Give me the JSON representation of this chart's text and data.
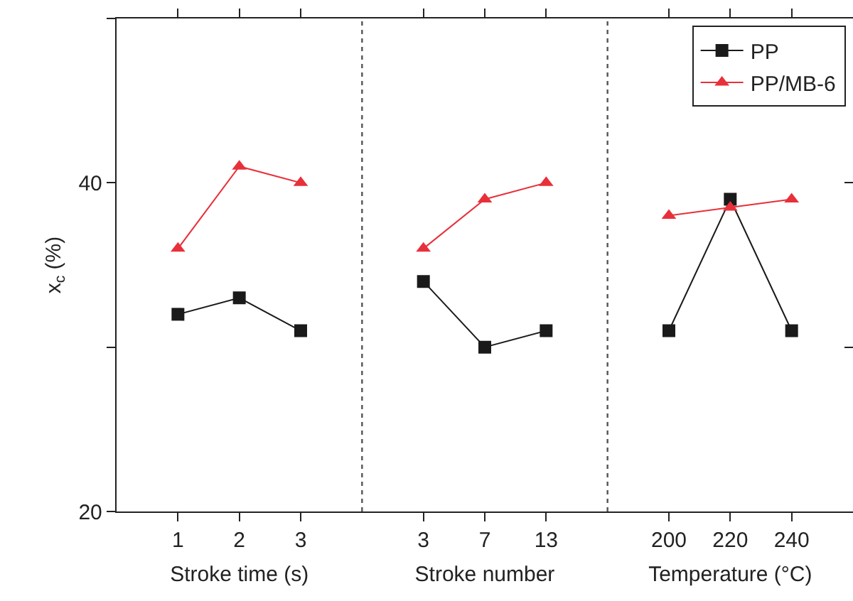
{
  "chart_data": [
    {
      "type": "line",
      "ylabel": "x$_{c}$ (%)",
      "xlabel": "Stroke time (s)",
      "categories": [
        "1",
        "2",
        "3"
      ],
      "ylim": [
        20,
        50
      ],
      "yticks": [
        20,
        {
          "value": 30,
          "label": null
        },
        40,
        {
          "value": 50,
          "label": null
        }
      ],
      "series": [
        {
          "name": "PP",
          "color": "#1a1a1a",
          "marker": "square",
          "values": [
            32,
            33,
            31
          ]
        },
        {
          "name": "PP/MB-6",
          "color": "#e8303a",
          "marker": "triangle",
          "values": [
            36,
            41,
            40
          ]
        }
      ],
      "legend": "top right"
    },
    {
      "type": "line",
      "xlabel": "Stroke number",
      "categories": [
        "3",
        "7",
        "13"
      ],
      "ylim": [
        20,
        50
      ],
      "tick_labels": "x",
      "series": [
        {
          "color": "#1a1a1a",
          "marker": "square",
          "values": [
            34,
            30,
            31
          ]
        },
        {
          "color": "#e8303a",
          "marker": "triangle",
          "values": [
            36,
            39,
            40
          ]
        }
      ]
    },
    {
      "type": "line",
      "xlabel": "Temperature (°C)",
      "categories": [
        "200",
        "220",
        "240"
      ],
      "ylim": [
        20,
        50
      ],
      "tick_labels": "x",
      "yticks": [
        {
          "value": 30,
          "label": null
        },
        {
          "value": 40,
          "label": null
        }
      ],
      "series": [
        {
          "color": "#1a1a1a",
          "marker": "square",
          "values": [
            31,
            39,
            31
          ]
        },
        {
          "color": "#e8303a",
          "marker": "triangle",
          "values": [
            38,
            38.5,
            39
          ]
        }
      ]
    }
  ]
}
